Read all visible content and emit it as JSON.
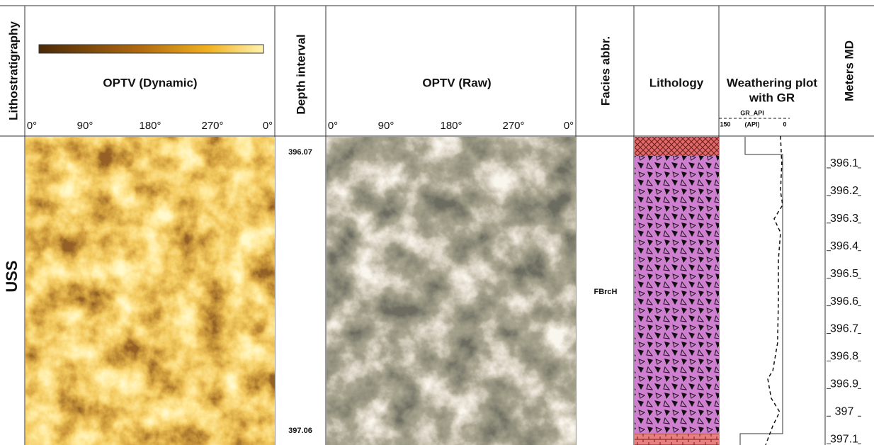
{
  "header": {
    "lithostratigraphy": "Lithostratigraphy",
    "optv_dynamic": {
      "title": "OPTV (Dynamic)",
      "angles": [
        "0°",
        "90°",
        "180°",
        "270°",
        "0°"
      ]
    },
    "depth_interval": "Depth interval",
    "optv_raw": {
      "title": "OPTV (Raw)",
      "angles": [
        "0°",
        "90°",
        "180°",
        "270°",
        "0°"
      ]
    },
    "facies": "Facies abbr.",
    "lithology": "Lithology",
    "weathering": {
      "title_lines": [
        "Weathering plot",
        "with GR"
      ],
      "curve_name": "GR_API",
      "unit": "(API)"
    },
    "meters_md": "Meters MD"
  },
  "unit": "USS",
  "depth_interval": {
    "top": "396.07",
    "bottom": "397.06"
  },
  "facies": "FBrcH",
  "depth_axis": {
    "lim": [
      396.0,
      397.12
    ],
    "ticks": [
      396.1,
      396.2,
      396.3,
      396.4,
      396.5,
      396.6,
      396.7,
      396.8,
      396.9,
      397,
      397.1
    ]
  },
  "gr": {
    "xlim": [
      150,
      0
    ],
    "depth": [
      396.0,
      396.1,
      396.2,
      396.25,
      396.3,
      396.35,
      396.45,
      396.6,
      396.75,
      396.85,
      396.88,
      396.95,
      397.0,
      397.05,
      397.12
    ],
    "values": [
      10,
      7,
      10,
      5,
      25,
      10,
      15,
      15,
      17,
      28,
      40,
      32,
      12,
      28,
      45
    ]
  }
}
